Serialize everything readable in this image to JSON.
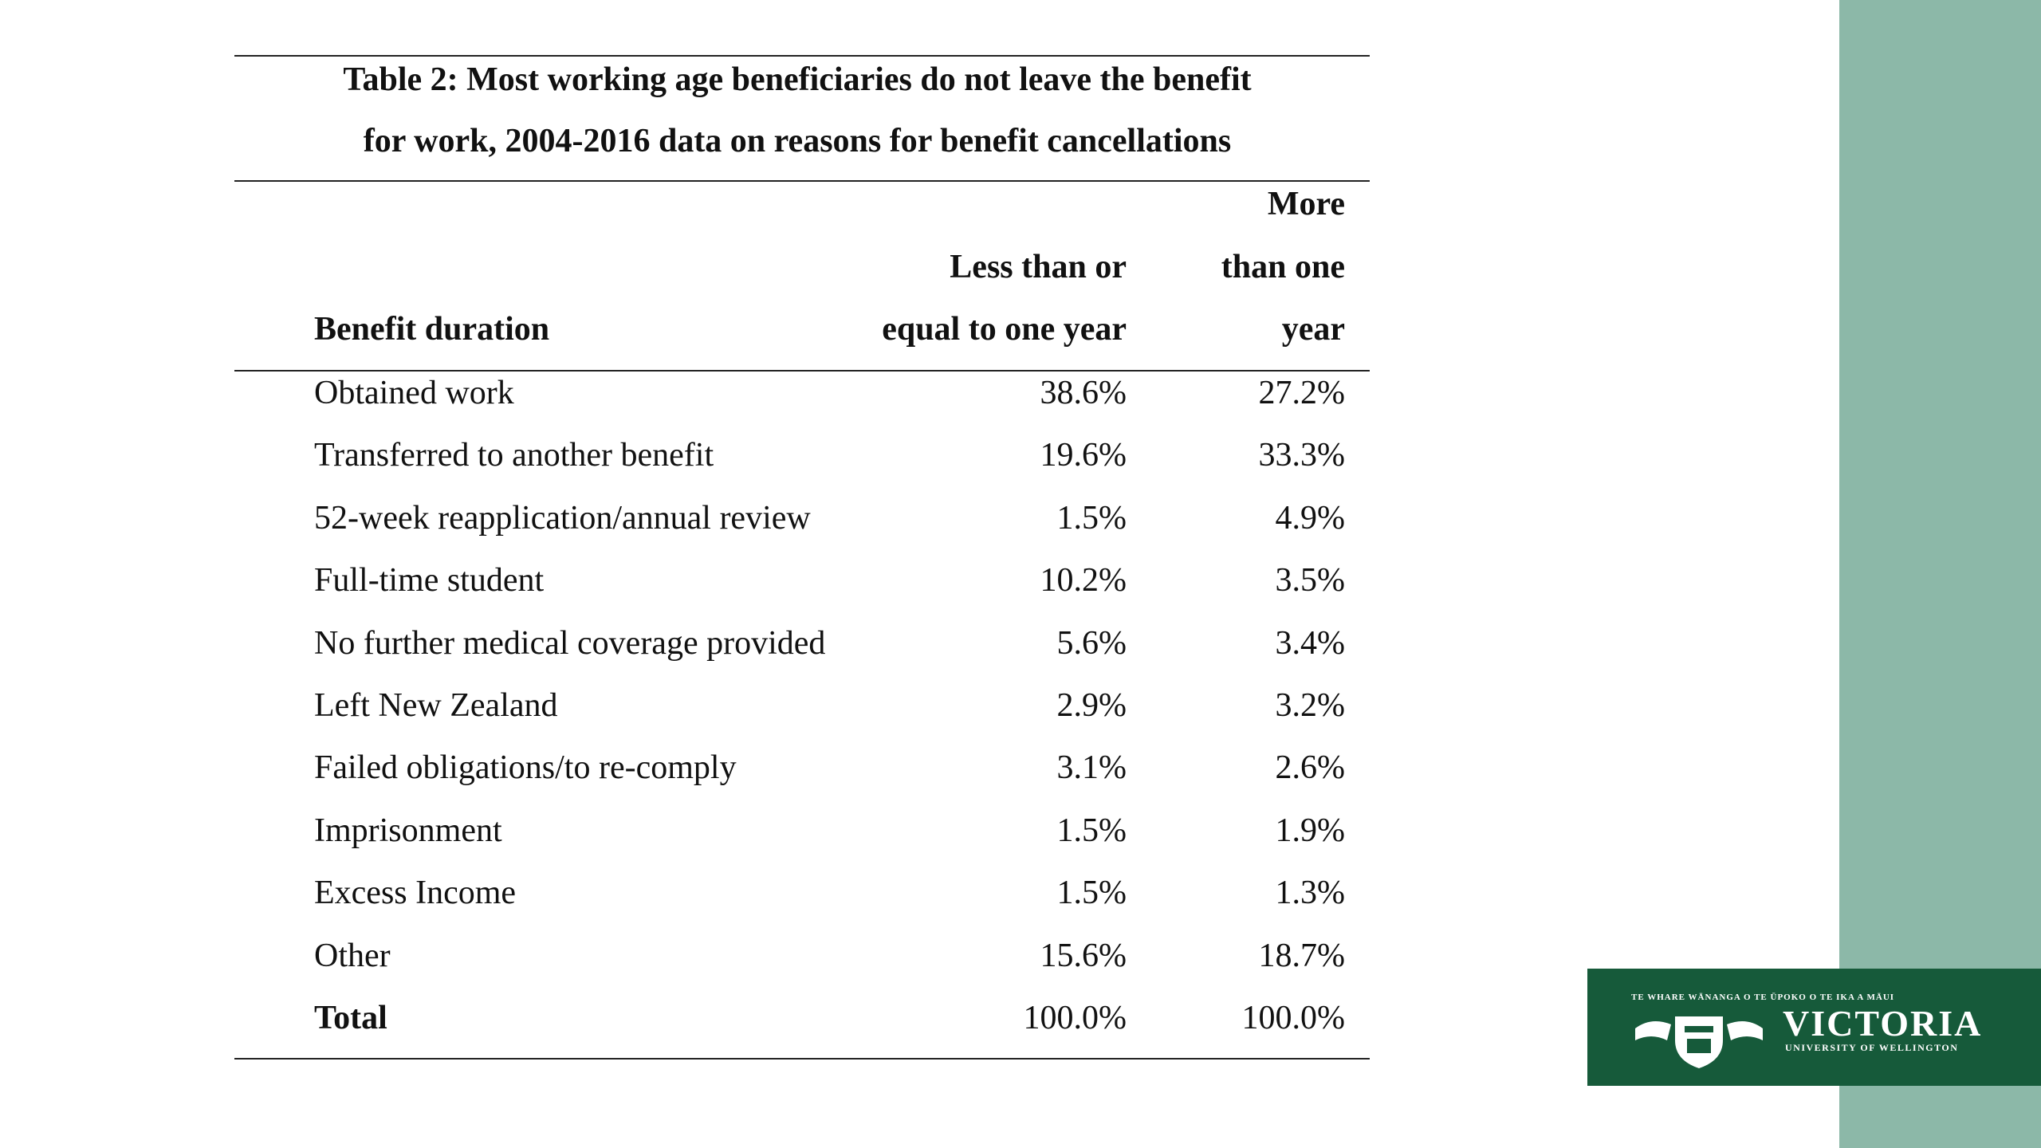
{
  "table": {
    "title": [
      "Table 2: Most working age beneficiaries do not leave the benefit",
      "for work, 2004-2016 data on reasons for benefit cancellations"
    ],
    "header": [
      [
        "Benefit duration"
      ],
      [
        "Less than or",
        "equal to one year"
      ],
      [
        "More",
        "than one",
        "year"
      ]
    ],
    "rows": [
      [
        "Obtained work",
        "38.6%",
        "27.2%"
      ],
      [
        "Transferred to another benefit",
        "19.6%",
        "33.3%"
      ],
      [
        "52-week reapplication/annual review",
        "1.5%",
        "4.9%"
      ],
      [
        "Full-time student",
        "10.2%",
        "3.5%"
      ],
      [
        "No further medical coverage provided",
        "5.6%",
        "3.4%"
      ],
      [
        "Left New Zealand",
        "2.9%",
        "3.2%"
      ],
      [
        "Failed obligations/to re-comply",
        "3.1%",
        "2.6%"
      ],
      [
        "Imprisonment",
        "1.5%",
        "1.9%"
      ],
      [
        "Excess Income",
        "1.5%",
        "1.3%"
      ],
      [
        "Other",
        "15.6%",
        "18.7%"
      ]
    ],
    "total": [
      "Total",
      "100.0%",
      "100.0%"
    ]
  },
  "logo": {
    "tagline": "TE WHARE WĀNANGA O TE ŪPOKO O TE IKA A MĀUI",
    "name": "VICTORIA",
    "subtitle": "UNIVERSITY OF WELLINGTON"
  }
}
